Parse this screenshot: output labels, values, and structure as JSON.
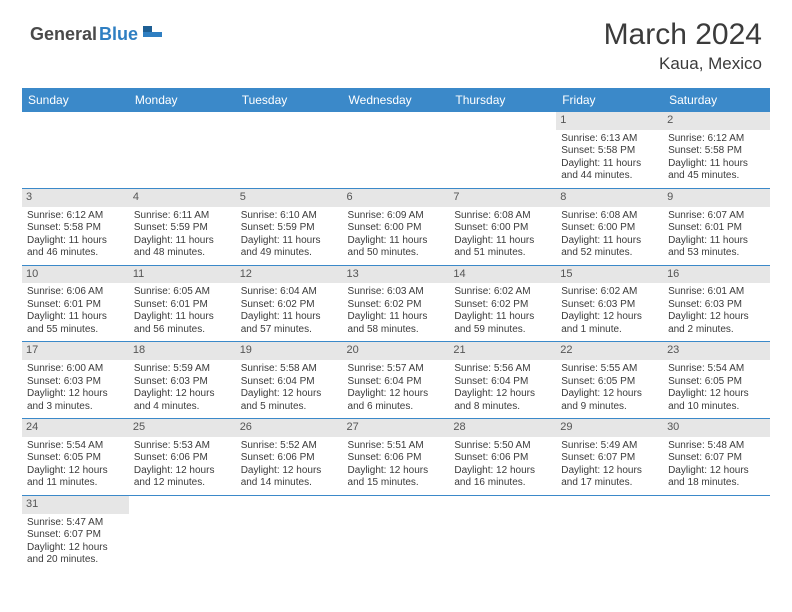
{
  "logo": {
    "part1": "General",
    "part2": "Blue"
  },
  "title": "March 2024",
  "location": "Kaua, Mexico",
  "colors": {
    "header_bg": "#3b89c9",
    "header_fg": "#ffffff",
    "daynum_bg": "#e6e6e6",
    "border": "#3b89c9"
  },
  "day_headers": [
    "Sunday",
    "Monday",
    "Tuesday",
    "Wednesday",
    "Thursday",
    "Friday",
    "Saturday"
  ],
  "weeks": [
    [
      null,
      null,
      null,
      null,
      null,
      {
        "n": "1",
        "sr": "Sunrise: 6:13 AM",
        "ss": "Sunset: 5:58 PM",
        "dl": "Daylight: 11 hours and 44 minutes."
      },
      {
        "n": "2",
        "sr": "Sunrise: 6:12 AM",
        "ss": "Sunset: 5:58 PM",
        "dl": "Daylight: 11 hours and 45 minutes."
      }
    ],
    [
      {
        "n": "3",
        "sr": "Sunrise: 6:12 AM",
        "ss": "Sunset: 5:58 PM",
        "dl": "Daylight: 11 hours and 46 minutes."
      },
      {
        "n": "4",
        "sr": "Sunrise: 6:11 AM",
        "ss": "Sunset: 5:59 PM",
        "dl": "Daylight: 11 hours and 48 minutes."
      },
      {
        "n": "5",
        "sr": "Sunrise: 6:10 AM",
        "ss": "Sunset: 5:59 PM",
        "dl": "Daylight: 11 hours and 49 minutes."
      },
      {
        "n": "6",
        "sr": "Sunrise: 6:09 AM",
        "ss": "Sunset: 6:00 PM",
        "dl": "Daylight: 11 hours and 50 minutes."
      },
      {
        "n": "7",
        "sr": "Sunrise: 6:08 AM",
        "ss": "Sunset: 6:00 PM",
        "dl": "Daylight: 11 hours and 51 minutes."
      },
      {
        "n": "8",
        "sr": "Sunrise: 6:08 AM",
        "ss": "Sunset: 6:00 PM",
        "dl": "Daylight: 11 hours and 52 minutes."
      },
      {
        "n": "9",
        "sr": "Sunrise: 6:07 AM",
        "ss": "Sunset: 6:01 PM",
        "dl": "Daylight: 11 hours and 53 minutes."
      }
    ],
    [
      {
        "n": "10",
        "sr": "Sunrise: 6:06 AM",
        "ss": "Sunset: 6:01 PM",
        "dl": "Daylight: 11 hours and 55 minutes."
      },
      {
        "n": "11",
        "sr": "Sunrise: 6:05 AM",
        "ss": "Sunset: 6:01 PM",
        "dl": "Daylight: 11 hours and 56 minutes."
      },
      {
        "n": "12",
        "sr": "Sunrise: 6:04 AM",
        "ss": "Sunset: 6:02 PM",
        "dl": "Daylight: 11 hours and 57 minutes."
      },
      {
        "n": "13",
        "sr": "Sunrise: 6:03 AM",
        "ss": "Sunset: 6:02 PM",
        "dl": "Daylight: 11 hours and 58 minutes."
      },
      {
        "n": "14",
        "sr": "Sunrise: 6:02 AM",
        "ss": "Sunset: 6:02 PM",
        "dl": "Daylight: 11 hours and 59 minutes."
      },
      {
        "n": "15",
        "sr": "Sunrise: 6:02 AM",
        "ss": "Sunset: 6:03 PM",
        "dl": "Daylight: 12 hours and 1 minute."
      },
      {
        "n": "16",
        "sr": "Sunrise: 6:01 AM",
        "ss": "Sunset: 6:03 PM",
        "dl": "Daylight: 12 hours and 2 minutes."
      }
    ],
    [
      {
        "n": "17",
        "sr": "Sunrise: 6:00 AM",
        "ss": "Sunset: 6:03 PM",
        "dl": "Daylight: 12 hours and 3 minutes."
      },
      {
        "n": "18",
        "sr": "Sunrise: 5:59 AM",
        "ss": "Sunset: 6:03 PM",
        "dl": "Daylight: 12 hours and 4 minutes."
      },
      {
        "n": "19",
        "sr": "Sunrise: 5:58 AM",
        "ss": "Sunset: 6:04 PM",
        "dl": "Daylight: 12 hours and 5 minutes."
      },
      {
        "n": "20",
        "sr": "Sunrise: 5:57 AM",
        "ss": "Sunset: 6:04 PM",
        "dl": "Daylight: 12 hours and 6 minutes."
      },
      {
        "n": "21",
        "sr": "Sunrise: 5:56 AM",
        "ss": "Sunset: 6:04 PM",
        "dl": "Daylight: 12 hours and 8 minutes."
      },
      {
        "n": "22",
        "sr": "Sunrise: 5:55 AM",
        "ss": "Sunset: 6:05 PM",
        "dl": "Daylight: 12 hours and 9 minutes."
      },
      {
        "n": "23",
        "sr": "Sunrise: 5:54 AM",
        "ss": "Sunset: 6:05 PM",
        "dl": "Daylight: 12 hours and 10 minutes."
      }
    ],
    [
      {
        "n": "24",
        "sr": "Sunrise: 5:54 AM",
        "ss": "Sunset: 6:05 PM",
        "dl": "Daylight: 12 hours and 11 minutes."
      },
      {
        "n": "25",
        "sr": "Sunrise: 5:53 AM",
        "ss": "Sunset: 6:06 PM",
        "dl": "Daylight: 12 hours and 12 minutes."
      },
      {
        "n": "26",
        "sr": "Sunrise: 5:52 AM",
        "ss": "Sunset: 6:06 PM",
        "dl": "Daylight: 12 hours and 14 minutes."
      },
      {
        "n": "27",
        "sr": "Sunrise: 5:51 AM",
        "ss": "Sunset: 6:06 PM",
        "dl": "Daylight: 12 hours and 15 minutes."
      },
      {
        "n": "28",
        "sr": "Sunrise: 5:50 AM",
        "ss": "Sunset: 6:06 PM",
        "dl": "Daylight: 12 hours and 16 minutes."
      },
      {
        "n": "29",
        "sr": "Sunrise: 5:49 AM",
        "ss": "Sunset: 6:07 PM",
        "dl": "Daylight: 12 hours and 17 minutes."
      },
      {
        "n": "30",
        "sr": "Sunrise: 5:48 AM",
        "ss": "Sunset: 6:07 PM",
        "dl": "Daylight: 12 hours and 18 minutes."
      }
    ],
    [
      {
        "n": "31",
        "sr": "Sunrise: 5:47 AM",
        "ss": "Sunset: 6:07 PM",
        "dl": "Daylight: 12 hours and 20 minutes."
      },
      null,
      null,
      null,
      null,
      null,
      null
    ]
  ]
}
